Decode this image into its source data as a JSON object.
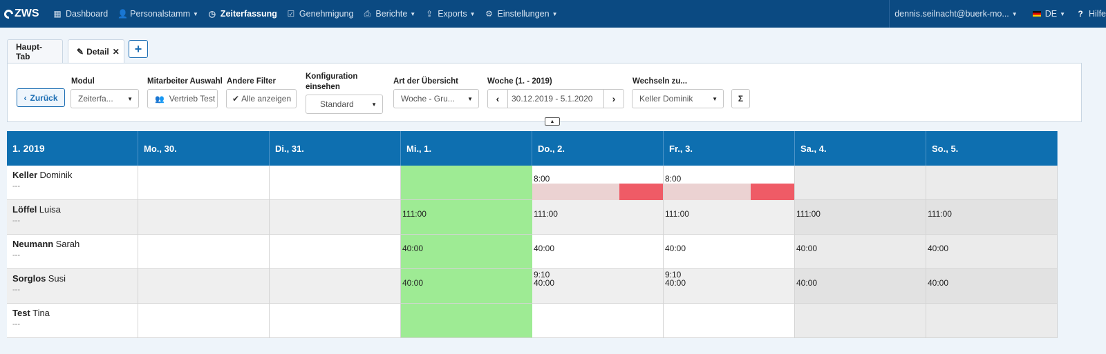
{
  "nav": {
    "logo": "ZWS",
    "items": [
      {
        "label": "Dashboard",
        "icon": "grid-icon",
        "caret": false,
        "active": false
      },
      {
        "label": "Personalstamm",
        "icon": "person-icon",
        "caret": true,
        "active": false
      },
      {
        "label": "Zeiterfassung",
        "icon": "clock-icon",
        "caret": false,
        "active": true
      },
      {
        "label": "Genehmigung",
        "icon": "checkbox-icon",
        "caret": false,
        "active": false
      },
      {
        "label": "Berichte",
        "icon": "printer-icon",
        "caret": true,
        "active": false
      },
      {
        "label": "Exports",
        "icon": "export-icon",
        "caret": true,
        "active": false
      },
      {
        "label": "Einstellungen",
        "icon": "gear-icon",
        "caret": true,
        "active": false
      }
    ],
    "user": "dennis.seilnacht@buerk-mo...",
    "language": "DE",
    "help": "Hilfe"
  },
  "tabs": {
    "main": "Haupt-Tab",
    "detail": "Detail"
  },
  "filters": {
    "back": "Zurück",
    "modul_label": "Modul",
    "modul_value": "Zeiterfa...",
    "mitarbeiter_label": "Mitarbeiter Auswahl",
    "mitarbeiter_value": "Vertrieb Test",
    "andere_label": "Andere Filter",
    "andere_value": "Alle anzeigen",
    "konfig_label_1": "Konfiguration",
    "konfig_label_2": "einsehen",
    "konfig_value": "Standard",
    "art_label": "Art der Übersicht",
    "art_value": "Woche - Gru...",
    "woche_label": "Woche (1. - 2019)",
    "woche_value": "30.12.2019 - 5.1.2020",
    "wechseln_label": "Wechseln zu...",
    "wechseln_value": "Keller Dominik",
    "sum_symbol": "Σ"
  },
  "grid": {
    "week_title": "1. 2019",
    "days": [
      "Mo., 30.",
      "Di., 31.",
      "Mi., 1.",
      "Do., 2.",
      "Fr., 3.",
      "Sa., 4.",
      "So., 5."
    ],
    "colors": {
      "holiday": "#9eeb94",
      "weekend": "#e6e6e6",
      "header": "#0e6fb0",
      "absence_bar": "#ebd2d2",
      "absence_mark": "#ef5b66"
    },
    "rows": [
      {
        "last": "Keller",
        "first": "Dominik",
        "sub": "---",
        "cells": [
          {
            "v": ""
          },
          {
            "v": ""
          },
          {
            "v": ""
          },
          {
            "v": "8:00",
            "bar": true
          },
          {
            "v": "8:00",
            "bar": true
          },
          {
            "v": ""
          },
          {
            "v": ""
          }
        ]
      },
      {
        "last": "Löffel",
        "first": "Luisa",
        "sub": "---",
        "cells": [
          {
            "v": ""
          },
          {
            "v": ""
          },
          {
            "v": "111:00"
          },
          {
            "v": "111:00"
          },
          {
            "v": "111:00"
          },
          {
            "v": "111:00"
          },
          {
            "v": "111:00"
          }
        ]
      },
      {
        "last": "Neumann",
        "first": "Sarah",
        "sub": "---",
        "cells": [
          {
            "v": ""
          },
          {
            "v": ""
          },
          {
            "v": "40:00"
          },
          {
            "v": "40:00"
          },
          {
            "v": "40:00"
          },
          {
            "v": "40:00"
          },
          {
            "v": "40:00"
          }
        ]
      },
      {
        "last": "Sorglos",
        "first": "Susi",
        "sub": "---",
        "cells": [
          {
            "v": ""
          },
          {
            "v": ""
          },
          {
            "v": "40:00"
          },
          {
            "v": "40:00",
            "top": "9:10"
          },
          {
            "v": "40:00",
            "top": "9:10"
          },
          {
            "v": "40:00"
          },
          {
            "v": "40:00"
          }
        ]
      },
      {
        "last": "Test",
        "first": "Tina",
        "sub": "---",
        "cells": [
          {
            "v": ""
          },
          {
            "v": ""
          },
          {
            "v": ""
          },
          {
            "v": ""
          },
          {
            "v": ""
          },
          {
            "v": ""
          },
          {
            "v": ""
          }
        ]
      }
    ]
  }
}
